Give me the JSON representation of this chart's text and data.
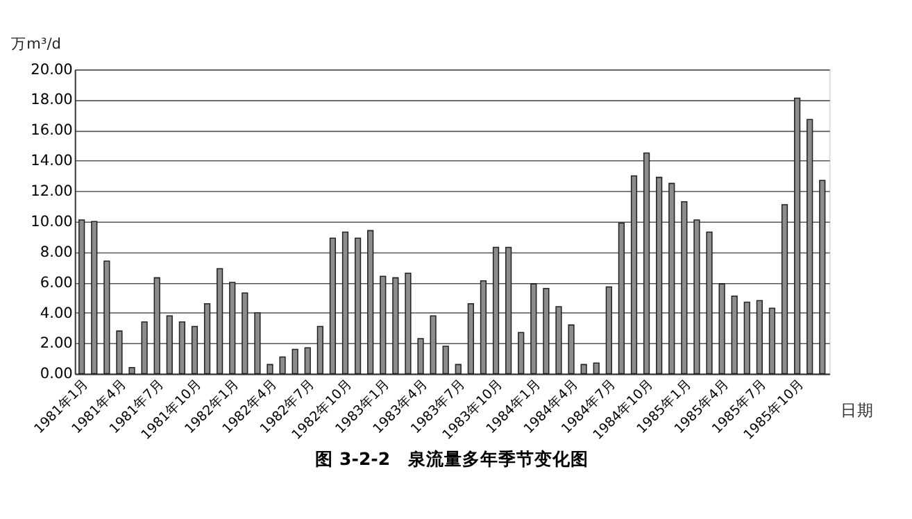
{
  "chart_data": {
    "type": "bar",
    "title": "图 3-2-2　泉流量多年季节变化图",
    "xlabel": "日期",
    "ylabel": "万m³/d",
    "categories": [
      "1981年1月",
      null,
      null,
      "1981年4月",
      null,
      null,
      "1981年7月",
      null,
      null,
      "1981年10月",
      null,
      null,
      "1982年1月",
      null,
      null,
      "1982年4月",
      null,
      null,
      "1982年7月",
      null,
      null,
      "1982年10月",
      null,
      null,
      "1983年1月",
      null,
      null,
      "1983年4月",
      null,
      null,
      "1983年7月",
      null,
      null,
      "1983年10月",
      null,
      null,
      "1984年1月",
      null,
      null,
      "1984年4月",
      null,
      null,
      "1984年7月",
      null,
      null,
      "1984年10月",
      null,
      null,
      "1985年1月",
      null,
      null,
      "1985年4月",
      null,
      null,
      "1985年7月",
      null,
      null,
      "1985年10月",
      null,
      null
    ],
    "values": [
      10.1,
      10.0,
      7.4,
      2.8,
      0.4,
      3.4,
      6.3,
      3.8,
      3.4,
      3.1,
      4.6,
      6.9,
      6.0,
      5.3,
      4.0,
      0.6,
      1.1,
      1.6,
      1.7,
      3.1,
      8.9,
      9.3,
      8.9,
      9.4,
      6.4,
      6.3,
      6.6,
      2.3,
      3.8,
      1.8,
      0.6,
      4.6,
      6.1,
      8.3,
      8.3,
      2.7,
      5.9,
      5.6,
      4.4,
      3.2,
      0.6,
      0.7,
      5.7,
      9.9,
      13.0,
      14.5,
      12.9,
      12.5,
      11.3,
      10.1,
      9.3,
      5.9,
      5.1,
      4.7,
      4.8,
      4.3,
      11.1,
      18.1,
      16.7,
      12.7
    ],
    "color": "#8c8c8c",
    "ylim": [
      0,
      20
    ],
    "yticks": [
      {
        "value": 0,
        "label": "0.00"
      },
      {
        "value": 2,
        "label": "2.00"
      },
      {
        "value": 4,
        "label": "4.00"
      },
      {
        "value": 6,
        "label": "6.00"
      },
      {
        "value": 8,
        "label": "8.00"
      },
      {
        "value": 10,
        "label": "10.00"
      },
      {
        "value": 12,
        "label": "12.00"
      },
      {
        "value": 14,
        "label": "14.00"
      },
      {
        "value": 16,
        "label": "16.00"
      },
      {
        "value": 18,
        "label": "18.00"
      },
      {
        "value": 20,
        "label": "20.00"
      }
    ],
    "grid": "y"
  }
}
